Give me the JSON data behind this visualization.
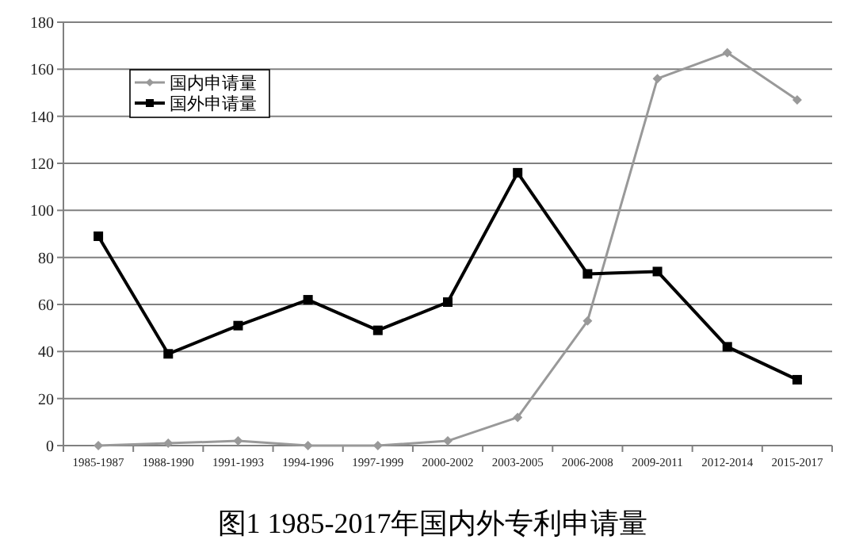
{
  "chart_data": {
    "type": "line",
    "title": "图1  1985-2017年国内外专利申请量",
    "categories": [
      "1985-1987",
      "1988-1990",
      "1991-1993",
      "1994-1996",
      "1997-1999",
      "2000-2002",
      "2003-2005",
      "2006-2008",
      "2009-2011",
      "2012-2014",
      "2015-2017"
    ],
    "series": [
      {
        "name": "国内申请量",
        "color": "#999999",
        "marker": "diamond",
        "values": [
          0,
          1,
          2,
          0,
          0,
          2,
          12,
          53,
          156,
          167,
          147
        ]
      },
      {
        "name": "国外申请量",
        "color": "#000000",
        "marker": "square",
        "values": [
          89,
          39,
          51,
          62,
          49,
          61,
          116,
          73,
          74,
          42,
          28
        ]
      }
    ],
    "ylim": [
      0,
      180
    ],
    "yticks": [
      0,
      20,
      40,
      60,
      80,
      100,
      120,
      140,
      160,
      180
    ],
    "grid": "y",
    "legend": "top left",
    "line_style": "solid"
  }
}
